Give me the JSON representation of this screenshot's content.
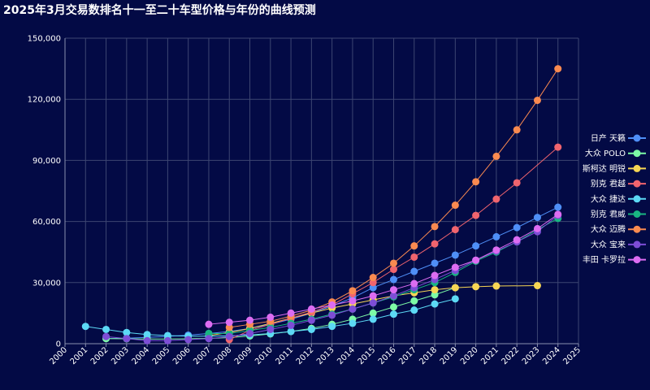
{
  "chart_data": {
    "type": "line",
    "title": "2025年3月交易数排名十一至二十车型价格与年份的曲线预测",
    "xlabel": "",
    "ylabel": "",
    "xlim": [
      2000,
      2025
    ],
    "ylim": [
      0,
      150000
    ],
    "x_ticks": [
      "2000",
      "2001",
      "2002",
      "2003",
      "2004",
      "2005",
      "2006",
      "2007",
      "2008",
      "2009",
      "2010",
      "2011",
      "2012",
      "2013",
      "2014",
      "2015",
      "2016",
      "2017",
      "2018",
      "2019",
      "2020",
      "2021",
      "2022",
      "2023",
      "2024",
      "2025"
    ],
    "y_ticks": [
      0,
      30000,
      60000,
      90000,
      120000,
      150000
    ],
    "y_tick_labels": [
      "0",
      "30,000",
      "60,000",
      "90,000",
      "120,000",
      "150,000"
    ],
    "grid": true,
    "legend_position": "right",
    "series": [
      {
        "name": "日产 天籁",
        "color": "#4f8ff7",
        "x": [
          2002,
          2003,
          2004,
          2005,
          2006,
          2007,
          2008,
          2009,
          2010,
          2011,
          2012,
          2013,
          2014,
          2015,
          2016,
          2017,
          2018,
          2019,
          2020,
          2021,
          2022,
          2023,
          2024
        ],
        "y": [
          2500,
          2700,
          3100,
          3600,
          4200,
          5000,
          6000,
          7500,
          9500,
          12000,
          15000,
          18500,
          22500,
          27500,
          31500,
          35500,
          39500,
          43500,
          48000,
          52500,
          57000,
          62000,
          67000
        ]
      },
      {
        "name": "大众 POLO",
        "color": "#7dfaa6",
        "x": [
          2002,
          2003,
          2004,
          2005,
          2006,
          2007,
          2008,
          2009,
          2010,
          2011,
          2012,
          2013,
          2014,
          2015,
          2016,
          2017,
          2018,
          2019
        ],
        "y": [
          2500,
          2400,
          2300,
          2300,
          2400,
          2600,
          3000,
          3800,
          4800,
          6000,
          7500,
          9500,
          12000,
          15000,
          18000,
          21000,
          24000,
          27500
        ]
      },
      {
        "name": "斯柯达 明锐",
        "color": "#f7d654",
        "x": [
          2007,
          2008,
          2009,
          2010,
          2011,
          2012,
          2013,
          2014,
          2015,
          2016,
          2017,
          2018,
          2019,
          2020,
          2021,
          2023
        ],
        "y": [
          4000,
          5500,
          7500,
          10000,
          12500,
          15000,
          17500,
          19500,
          21500,
          23500,
          25000,
          26500,
          27500,
          28000,
          28300,
          28500
        ]
      },
      {
        "name": "别克 君越",
        "color": "#f0646e",
        "x": [
          2008,
          2009,
          2010,
          2011,
          2012,
          2013,
          2014,
          2015,
          2016,
          2017,
          2018,
          2019,
          2020,
          2021,
          2022,
          2024
        ],
        "y": [
          2000,
          6500,
          9500,
          12500,
          15500,
          19000,
          24500,
          30000,
          36500,
          42500,
          49000,
          56000,
          63000,
          71000,
          79000,
          96500
        ]
      },
      {
        "name": "大众 捷达",
        "color": "#5cd9f5",
        "x": [
          2001,
          2002,
          2003,
          2004,
          2005,
          2006,
          2007,
          2008,
          2009,
          2010,
          2011,
          2012,
          2013,
          2014,
          2015,
          2016,
          2017,
          2018,
          2019
        ],
        "y": [
          8500,
          7000,
          5500,
          4500,
          4000,
          3700,
          3700,
          3900,
          4300,
          5000,
          6000,
          7000,
          8500,
          10000,
          12000,
          14500,
          16500,
          19500,
          22000
        ]
      },
      {
        "name": "别克 君威",
        "color": "#19b582",
        "x": [
          2007,
          2008,
          2009,
          2010,
          2011,
          2012,
          2013,
          2014,
          2015,
          2016,
          2017,
          2018,
          2019,
          2020,
          2021,
          2022,
          2023,
          2024
        ],
        "y": [
          5000,
          5000,
          6500,
          8000,
          10000,
          12000,
          14500,
          17000,
          20000,
          23000,
          26500,
          30000,
          35000,
          40500,
          45000,
          50000,
          56000,
          61500
        ]
      },
      {
        "name": "大众 迈腾",
        "color": "#fa8a50",
        "x": [
          2008,
          2009,
          2010,
          2011,
          2012,
          2013,
          2014,
          2015,
          2016,
          2017,
          2018,
          2019,
          2020,
          2021,
          2022,
          2023,
          2024
        ],
        "y": [
          8000,
          9500,
          11000,
          13500,
          16500,
          20500,
          26000,
          32500,
          39500,
          48000,
          57500,
          68000,
          79500,
          92000,
          105000,
          119500,
          135000
        ]
      },
      {
        "name": "大众 宝来",
        "color": "#7d4dd6",
        "x": [
          2002,
          2003,
          2004,
          2005,
          2006,
          2007,
          2008,
          2009,
          2010,
          2011,
          2012,
          2013,
          2014,
          2015,
          2016,
          2017,
          2018,
          2019,
          2020,
          2021,
          2022,
          2023,
          2024
        ],
        "y": [
          3500,
          2500,
          1500,
          1500,
          2000,
          2500,
          3500,
          5000,
          7000,
          9000,
          11500,
          14000,
          17000,
          20000,
          23500,
          27500,
          31500,
          36000,
          41000,
          45500,
          50000,
          55000,
          63000
        ]
      },
      {
        "name": "丰田 卡罗拉",
        "color": "#dc6cf2",
        "x": [
          2007,
          2008,
          2009,
          2010,
          2011,
          2012,
          2013,
          2014,
          2015,
          2016,
          2017,
          2018,
          2019,
          2020,
          2021,
          2022,
          2023,
          2024
        ],
        "y": [
          9500,
          10500,
          11500,
          13000,
          15000,
          17000,
          19000,
          21000,
          23500,
          26500,
          29500,
          33500,
          37500,
          41000,
          46000,
          51000,
          56500,
          63500
        ]
      }
    ]
  }
}
